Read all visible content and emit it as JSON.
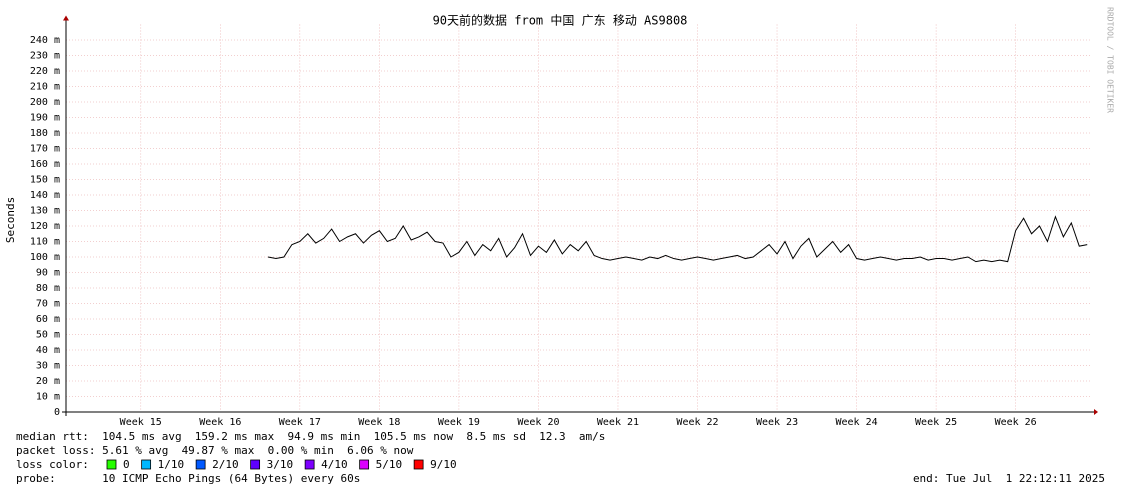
{
  "chart_data": {
    "type": "line",
    "title": "90天前的数据 from 中国 广东 移动 AS9808",
    "ylabel": "Seconds",
    "watermark": "RRDTOOL / TOBI OETIKER",
    "xlim": [
      14.06,
      26.96
    ],
    "xticks": [
      {
        "value": 15,
        "label": "Week 15"
      },
      {
        "value": 16,
        "label": "Week 16"
      },
      {
        "value": 17,
        "label": "Week 17"
      },
      {
        "value": 18,
        "label": "Week 18"
      },
      {
        "value": 19,
        "label": "Week 19"
      },
      {
        "value": 20,
        "label": "Week 20"
      },
      {
        "value": 21,
        "label": "Week 21"
      },
      {
        "value": 22,
        "label": "Week 22"
      },
      {
        "value": 23,
        "label": "Week 23"
      },
      {
        "value": 24,
        "label": "Week 24"
      },
      {
        "value": 25,
        "label": "Week 25"
      },
      {
        "value": 26,
        "label": "Week 26"
      }
    ],
    "ylim": [
      0,
      0.25
    ],
    "yticks": [
      {
        "value": 0,
        "label": "0"
      },
      {
        "value": 0.01,
        "label": "10 m"
      },
      {
        "value": 0.02,
        "label": "20 m"
      },
      {
        "value": 0.03,
        "label": "30 m"
      },
      {
        "value": 0.04,
        "label": "40 m"
      },
      {
        "value": 0.05,
        "label": "50 m"
      },
      {
        "value": 0.06,
        "label": "60 m"
      },
      {
        "value": 0.07,
        "label": "70 m"
      },
      {
        "value": 0.08,
        "label": "80 m"
      },
      {
        "value": 0.09,
        "label": "90 m"
      },
      {
        "value": 0.1,
        "label": "100 m"
      },
      {
        "value": 0.11,
        "label": "110 m"
      },
      {
        "value": 0.12,
        "label": "120 m"
      },
      {
        "value": 0.13,
        "label": "130 m"
      },
      {
        "value": 0.14,
        "label": "140 m"
      },
      {
        "value": 0.15,
        "label": "150 m"
      },
      {
        "value": 0.16,
        "label": "160 m"
      },
      {
        "value": 0.17,
        "label": "170 m"
      },
      {
        "value": 0.18,
        "label": "180 m"
      },
      {
        "value": 0.19,
        "label": "190 m"
      },
      {
        "value": 0.2,
        "label": "200 m"
      },
      {
        "value": 0.21,
        "label": "210 m"
      },
      {
        "value": 0.22,
        "label": "220 m"
      },
      {
        "value": 0.23,
        "label": "230 m"
      },
      {
        "value": 0.24,
        "label": "240 m"
      }
    ],
    "grid": true,
    "x": [
      16.6,
      16.7,
      16.8,
      16.9,
      17.0,
      17.1,
      17.2,
      17.3,
      17.4,
      17.5,
      17.6,
      17.7,
      17.8,
      17.9,
      18.0,
      18.1,
      18.2,
      18.3,
      18.4,
      18.5,
      18.6,
      18.7,
      18.8,
      18.9,
      19.0,
      19.1,
      19.2,
      19.3,
      19.4,
      19.5,
      19.6,
      19.7,
      19.8,
      19.9,
      20.0,
      20.1,
      20.2,
      20.3,
      20.4,
      20.5,
      20.6,
      20.7,
      20.8,
      20.9,
      21.0,
      21.1,
      21.2,
      21.3,
      21.4,
      21.5,
      21.6,
      21.7,
      21.8,
      21.9,
      22.0,
      22.1,
      22.2,
      22.3,
      22.4,
      22.5,
      22.6,
      22.7,
      22.8,
      22.9,
      23.0,
      23.1,
      23.2,
      23.3,
      23.4,
      23.5,
      23.6,
      23.7,
      23.8,
      23.9,
      24.0,
      24.1,
      24.2,
      24.3,
      24.4,
      24.5,
      24.6,
      24.7,
      24.8,
      24.9,
      25.0,
      25.1,
      25.2,
      25.3,
      25.4,
      25.5,
      25.6,
      25.7,
      25.8,
      25.9,
      26.0,
      26.1,
      26.2,
      26.3,
      26.4,
      26.5,
      26.6,
      26.7,
      26.8,
      26.9
    ],
    "series": [
      {
        "color": "#000000",
        "values": [
          0.1,
          0.099,
          0.1,
          0.108,
          0.11,
          0.115,
          0.109,
          0.112,
          0.118,
          0.11,
          0.113,
          0.115,
          0.109,
          0.114,
          0.117,
          0.11,
          0.112,
          0.12,
          0.111,
          0.113,
          0.116,
          0.11,
          0.109,
          0.1,
          0.103,
          0.11,
          0.101,
          0.108,
          0.104,
          0.112,
          0.1,
          0.106,
          0.115,
          0.101,
          0.107,
          0.103,
          0.111,
          0.102,
          0.108,
          0.104,
          0.11,
          0.101,
          0.099,
          0.098,
          0.099,
          0.1,
          0.099,
          0.098,
          0.1,
          0.099,
          0.101,
          0.099,
          0.098,
          0.099,
          0.1,
          0.099,
          0.098,
          0.099,
          0.1,
          0.101,
          0.099,
          0.1,
          0.104,
          0.108,
          0.102,
          0.11,
          0.099,
          0.107,
          0.112,
          0.1,
          0.105,
          0.11,
          0.103,
          0.108,
          0.099,
          0.098,
          0.099,
          0.1,
          0.099,
          0.098,
          0.099,
          0.099,
          0.1,
          0.098,
          0.099,
          0.099,
          0.098,
          0.099,
          0.1,
          0.097,
          0.098,
          0.097,
          0.098,
          0.097,
          0.117,
          0.125,
          0.115,
          0.12,
          0.11,
          0.126,
          0.113,
          0.122,
          0.107,
          0.108
        ]
      }
    ],
    "legend": {
      "median_rtt": "median rtt:  104.5 ms avg  159.2 ms max  94.9 ms min  105.5 ms now  8.5 ms sd  12.3  am/s",
      "packet_loss": "packet loss: 5.61 % avg  49.87 % max  0.00 % min  6.06 % now",
      "loss_color": "loss color:",
      "loss_colors": [
        {
          "label": "0",
          "color": "#26ff00"
        },
        {
          "label": "1/10",
          "color": "#00b8ff"
        },
        {
          "label": "2/10",
          "color": "#0059ff"
        },
        {
          "label": "3/10",
          "color": "#5e00ff"
        },
        {
          "label": "4/10",
          "color": "#7e00ff"
        },
        {
          "label": "5/10",
          "color": "#dd00ff"
        },
        {
          "label": "9/10",
          "color": "#ff0000"
        }
      ],
      "probe": "probe:       10 ICMP Echo Pings (64 Bytes) every 60s",
      "end": "end: Tue Jul  1 22:12:11 2025"
    }
  }
}
